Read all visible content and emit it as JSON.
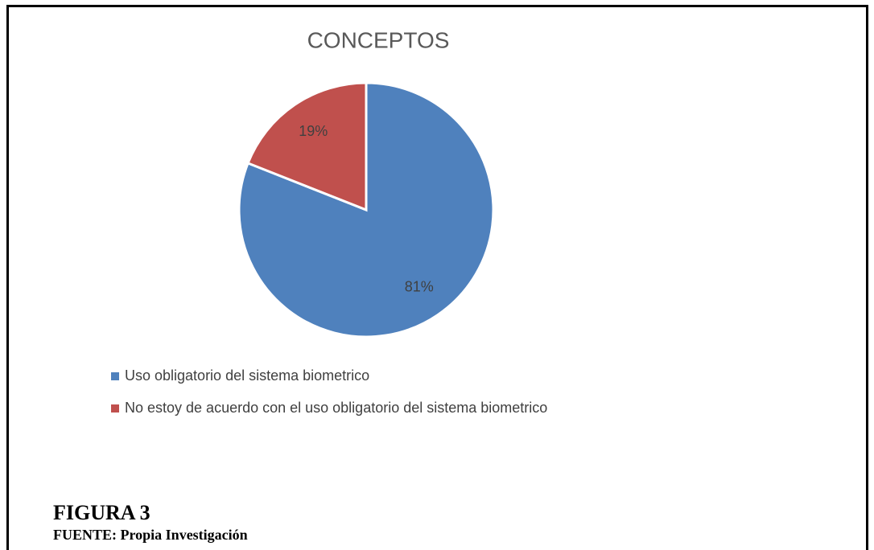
{
  "chart_data": {
    "type": "pie",
    "title": "CONCEPTOS",
    "categories": [
      "Uso obligatorio del sistema biometrico",
      "No estoy de acuerdo con el uso obligatorio del sistema biometrico"
    ],
    "values": [
      81,
      19
    ],
    "value_labels": [
      "81%",
      "19%"
    ],
    "colors": [
      "#4f81bd",
      "#c0504d"
    ],
    "legend": "bottom"
  },
  "caption": {
    "figure": "FIGURA 3",
    "source": "FUENTE: Propia Investigación"
  }
}
